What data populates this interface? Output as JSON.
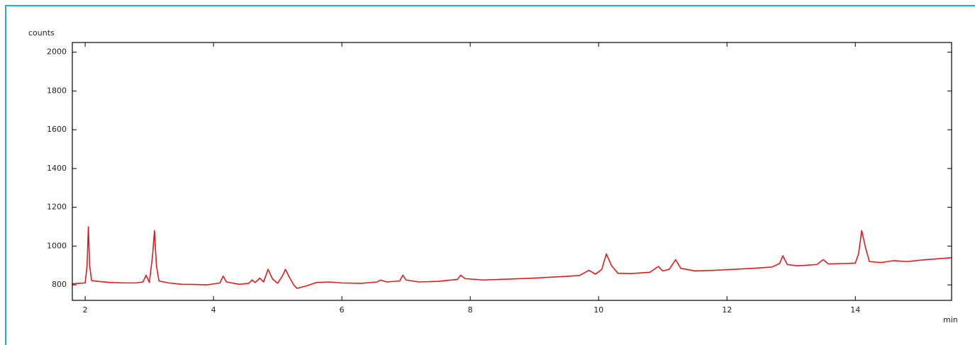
{
  "chart_data": {
    "type": "line",
    "y_label": "counts",
    "x_label": "min",
    "xlim": [
      1.8,
      15.5
    ],
    "ylim": [
      720,
      2050
    ],
    "xticks": [
      2,
      4,
      6,
      8,
      10,
      12,
      14
    ],
    "yticks": [
      800,
      1000,
      1200,
      1400,
      1600,
      1800,
      2000
    ],
    "grid": false,
    "x": [
      1.8,
      1.9,
      2.0,
      2.03,
      2.05,
      2.07,
      2.1,
      2.2,
      2.4,
      2.6,
      2.8,
      2.9,
      2.95,
      3.0,
      3.05,
      3.08,
      3.11,
      3.15,
      3.3,
      3.5,
      3.7,
      3.9,
      4.1,
      4.15,
      4.2,
      4.4,
      4.55,
      4.6,
      4.65,
      4.72,
      4.78,
      4.85,
      4.92,
      5.0,
      5.08,
      5.12,
      5.18,
      5.25,
      5.3,
      5.45,
      5.6,
      5.8,
      6.0,
      6.3,
      6.55,
      6.6,
      6.7,
      6.9,
      6.95,
      7.0,
      7.2,
      7.5,
      7.8,
      7.85,
      7.92,
      8.2,
      8.6,
      9.0,
      9.4,
      9.7,
      9.85,
      9.95,
      10.05,
      10.12,
      10.2,
      10.3,
      10.5,
      10.8,
      10.93,
      11.0,
      11.1,
      11.2,
      11.28,
      11.5,
      11.8,
      12.1,
      12.4,
      12.7,
      12.82,
      12.87,
      12.94,
      13.1,
      13.4,
      13.5,
      13.58,
      13.8,
      14.0,
      14.05,
      14.1,
      14.16,
      14.22,
      14.4,
      14.6,
      14.8,
      15.1,
      15.3,
      15.5
    ],
    "series": [
      {
        "color": "#e31a1c",
        "values": [
          805,
          808,
          810,
          900,
          1100,
          900,
          822,
          818,
          812,
          810,
          810,
          815,
          850,
          812,
          950,
          1080,
          900,
          820,
          810,
          803,
          802,
          800,
          810,
          845,
          815,
          803,
          808,
          825,
          812,
          835,
          815,
          880,
          830,
          808,
          850,
          880,
          840,
          800,
          782,
          795,
          812,
          815,
          810,
          808,
          815,
          825,
          815,
          820,
          850,
          825,
          815,
          818,
          828,
          850,
          832,
          825,
          830,
          835,
          842,
          848,
          875,
          855,
          880,
          960,
          900,
          860,
          858,
          865,
          895,
          872,
          880,
          930,
          885,
          872,
          875,
          880,
          885,
          892,
          910,
          950,
          905,
          898,
          905,
          930,
          908,
          910,
          912,
          960,
          1080,
          990,
          920,
          915,
          925,
          920,
          930,
          935,
          940
        ]
      }
    ]
  }
}
